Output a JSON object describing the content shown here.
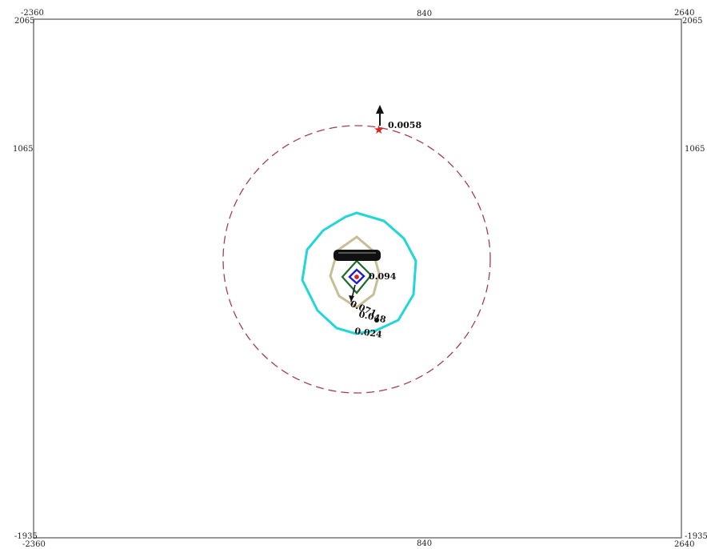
{
  "frame": {
    "corners": {
      "top_left_x": "-2360",
      "top_left_y": "2065",
      "top_right_x": "2640",
      "top_right_y": "2065",
      "bottom_left_x": "-2360",
      "bottom_left_y": "-1935",
      "bottom_right_x": "2640",
      "bottom_right_y": "-1935"
    },
    "top_mid": "840",
    "bottom_mid": "840",
    "left_mid": "1065",
    "right_mid": "1065"
  },
  "contour_labels": {
    "max_point": "0.0058",
    "c1": "0.094",
    "c2": "0.071",
    "c3": "0.048",
    "c4": "0.024"
  },
  "colors": {
    "dashed_circle": "#a04050",
    "cyan_contour": "#22d6d6",
    "tan_contour": "#c8bd96",
    "green_contour": "#1f6b2a",
    "blue_contour": "#2020c0",
    "marker": "#e02020"
  }
}
